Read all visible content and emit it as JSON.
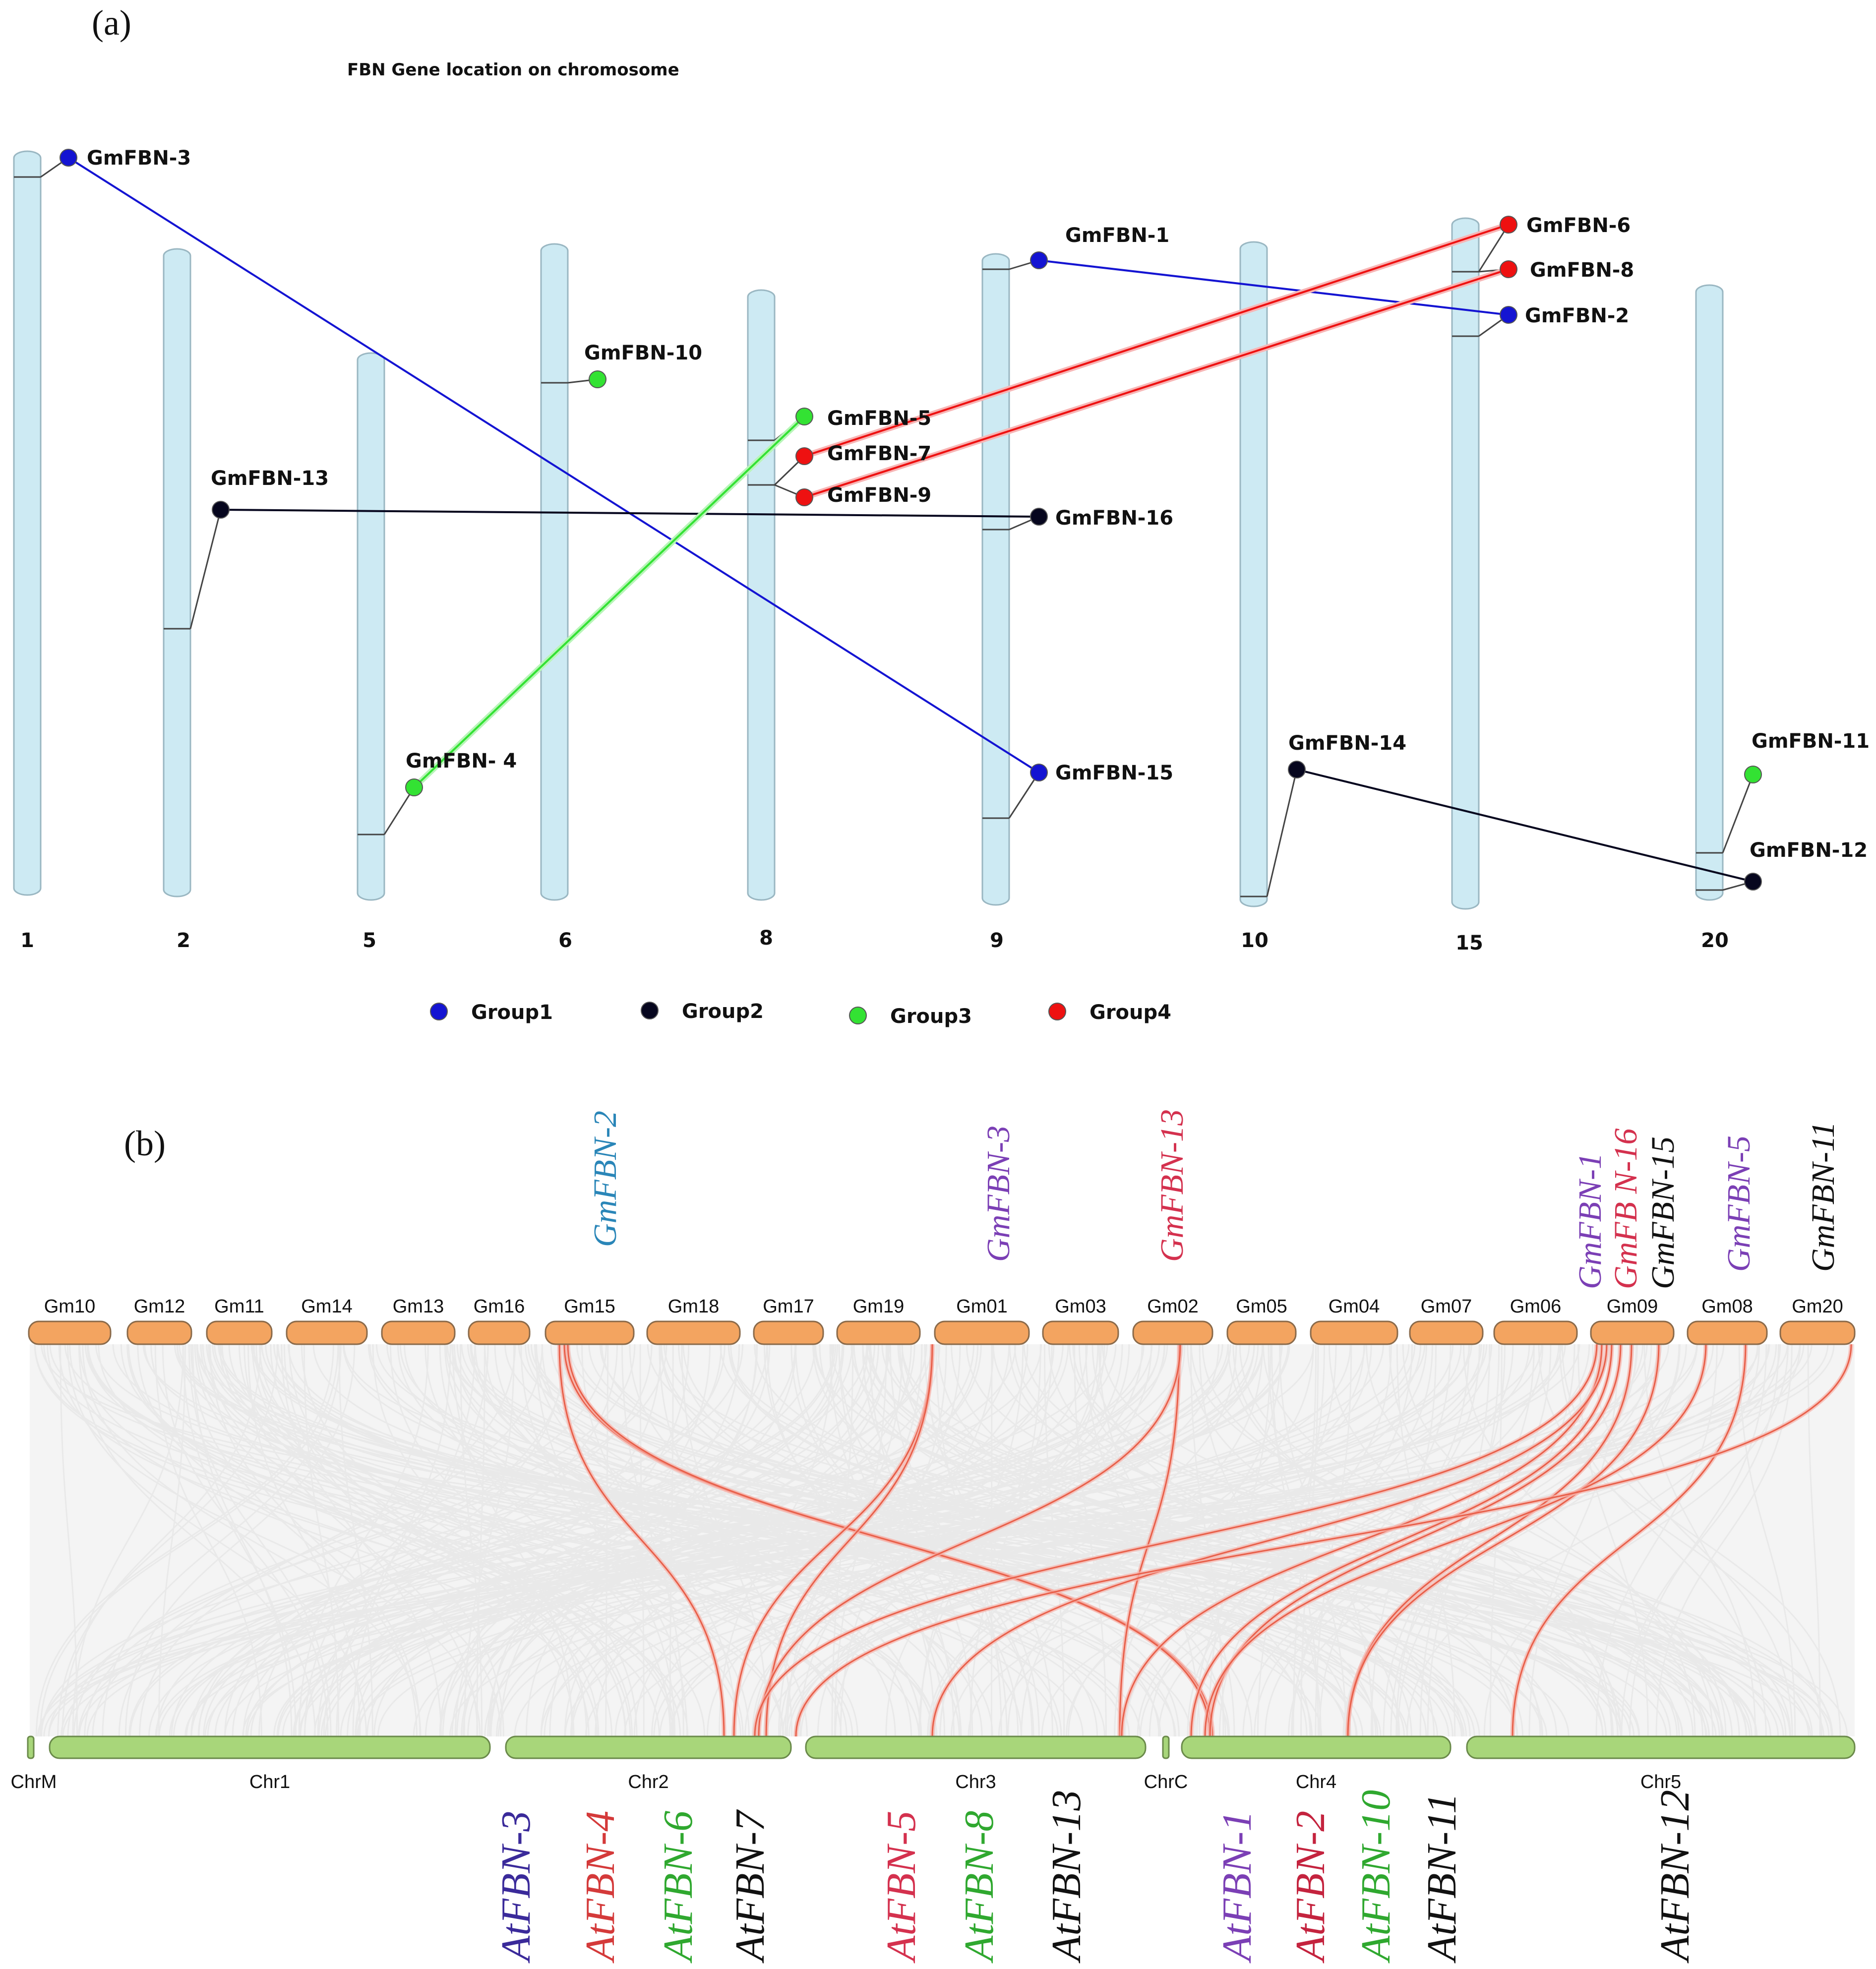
{
  "panel_a": {
    "letter": "(a)",
    "title": "FBN Gene location on chromosome",
    "chromosomes": [
      "1",
      "2",
      "5",
      "6",
      "8",
      "9",
      "10",
      "15",
      "20"
    ],
    "genes": [
      {
        "name": "GmFBN-3",
        "chromosome": "1",
        "group": "Group1"
      },
      {
        "name": "GmFBN-13",
        "chromosome": "2",
        "group": "Group2"
      },
      {
        "name": "GmFBN- 4",
        "chromosome": "5",
        "group": "Group3"
      },
      {
        "name": "GmFBN-10",
        "chromosome": "6",
        "group": "Group3"
      },
      {
        "name": "GmFBN-5",
        "chromosome": "8",
        "group": "Group3"
      },
      {
        "name": "GmFBN-7",
        "chromosome": "8",
        "group": "Group4"
      },
      {
        "name": "GmFBN-9",
        "chromosome": "8",
        "group": "Group4"
      },
      {
        "name": "GmFBN-1",
        "chromosome": "9",
        "group": "Group1"
      },
      {
        "name": "GmFBN-16",
        "chromosome": "9",
        "group": "Group2"
      },
      {
        "name": "GmFBN-15",
        "chromosome": "9",
        "group": "Group1"
      },
      {
        "name": "GmFBN-14",
        "chromosome": "10",
        "group": "Group2"
      },
      {
        "name": "GmFBN-6",
        "chromosome": "15",
        "group": "Group4"
      },
      {
        "name": "GmFBN-8",
        "chromosome": "15",
        "group": "Group4"
      },
      {
        "name": "GmFBN-2",
        "chromosome": "15",
        "group": "Group1"
      },
      {
        "name": "GmFBN-11",
        "chromosome": "20",
        "group": "Group3"
      },
      {
        "name": "GmFBN-12",
        "chromosome": "20",
        "group": "Group2"
      }
    ],
    "links": [
      {
        "from": "GmFBN-3",
        "to": "GmFBN-15",
        "group": "Group1"
      },
      {
        "from": "GmFBN-1",
        "to": "GmFBN-2",
        "group": "Group1"
      },
      {
        "from": "GmFBN-13",
        "to": "GmFBN-16",
        "group": "Group2"
      },
      {
        "from": "GmFBN-14",
        "to": "GmFBN-12",
        "group": "Group2"
      },
      {
        "from": "GmFBN- 4",
        "to": "GmFBN-5",
        "group": "Group3"
      },
      {
        "from": "GmFBN-7",
        "to": "GmFBN-6",
        "group": "Group4"
      },
      {
        "from": "GmFBN-9",
        "to": "GmFBN-8",
        "group": "Group4"
      }
    ],
    "legend": [
      {
        "label": "Group1",
        "color": "#1414d2"
      },
      {
        "label": "Group2",
        "color": "#06061e"
      },
      {
        "label": "Group3",
        "color": "#33e233"
      },
      {
        "label": "Group4",
        "color": "#ee1111"
      }
    ]
  },
  "panel_b": {
    "letter": "(b)",
    "soybean_chromosomes": [
      "Gm10",
      "Gm12",
      "Gm11",
      "Gm14",
      "Gm13",
      "Gm16",
      "Gm15",
      "Gm18",
      "Gm17",
      "Gm19",
      "Gm01",
      "Gm03",
      "Gm02",
      "Gm05",
      "Gm04",
      "Gm07",
      "Gm06",
      "Gm09",
      "Gm08",
      "Gm20"
    ],
    "arabidopsis_chromosomes": [
      "ChrM",
      "Chr1",
      "Chr2",
      "Chr3",
      "ChrC",
      "Chr4",
      "Chr5"
    ],
    "top_gene_labels": [
      {
        "text": "GmFBN-2",
        "chromosome": "Gm15",
        "color": "#2a86b8"
      },
      {
        "text": "GmFBN-3",
        "chromosome": "Gm01",
        "color": "#7b3fb5"
      },
      {
        "text": "GmFBN-13",
        "chromosome": "Gm02",
        "color": "#d4314e"
      },
      {
        "text": "GmFBN-1",
        "chromosome": "Gm09",
        "color": "#7b3fb5"
      },
      {
        "text": "GmFB N-16",
        "chromosome": "Gm09",
        "color": "#d4314e"
      },
      {
        "text": "GmFBN-15",
        "chromosome": "Gm09",
        "color": "#111111"
      },
      {
        "text": "GmFBN-5",
        "chromosome": "Gm08",
        "color": "#7b3fb5"
      },
      {
        "text": "GmFBN-11",
        "chromosome": "Gm20",
        "color": "#111111"
      }
    ],
    "bottom_gene_labels": [
      {
        "text": "AtFBN-3",
        "chromosome": "Chr2",
        "color": "#3a2a9a"
      },
      {
        "text": "AtFBN-4",
        "chromosome": "Chr2",
        "color": "#d43a3a"
      },
      {
        "text": "AtFBN-6",
        "chromosome": "Chr2",
        "color": "#2fa82f"
      },
      {
        "text": "AtFBN-7",
        "chromosome": "Chr2",
        "color": "#111111"
      },
      {
        "text": "AtFBN-5",
        "chromosome": "Chr3",
        "color": "#d4314e"
      },
      {
        "text": "AtFBN-8",
        "chromosome": "Chr3",
        "color": "#2fa82f"
      },
      {
        "text": "AtFBN-13",
        "chromosome": "Chr3",
        "color": "#111111"
      },
      {
        "text": "AtFBN-1",
        "chromosome": "Chr4",
        "color": "#7b3fb5"
      },
      {
        "text": "AtFBN-2",
        "chromosome": "Chr4",
        "color": "#c4233e"
      },
      {
        "text": "AtFBN-10",
        "chromosome": "Chr4",
        "color": "#2fa82f"
      },
      {
        "text": "AtFBN-11",
        "chromosome": "Chr4",
        "color": "#111111"
      },
      {
        "text": "AtFBN-12",
        "chromosome": "Chr5",
        "color": "#111111"
      }
    ],
    "colors": {
      "soy_chr_fill": "#f3a460",
      "at_chr_fill": "#a8d67a",
      "background_link": "#e6e6e6",
      "highlight_link": "#e8604a"
    }
  }
}
